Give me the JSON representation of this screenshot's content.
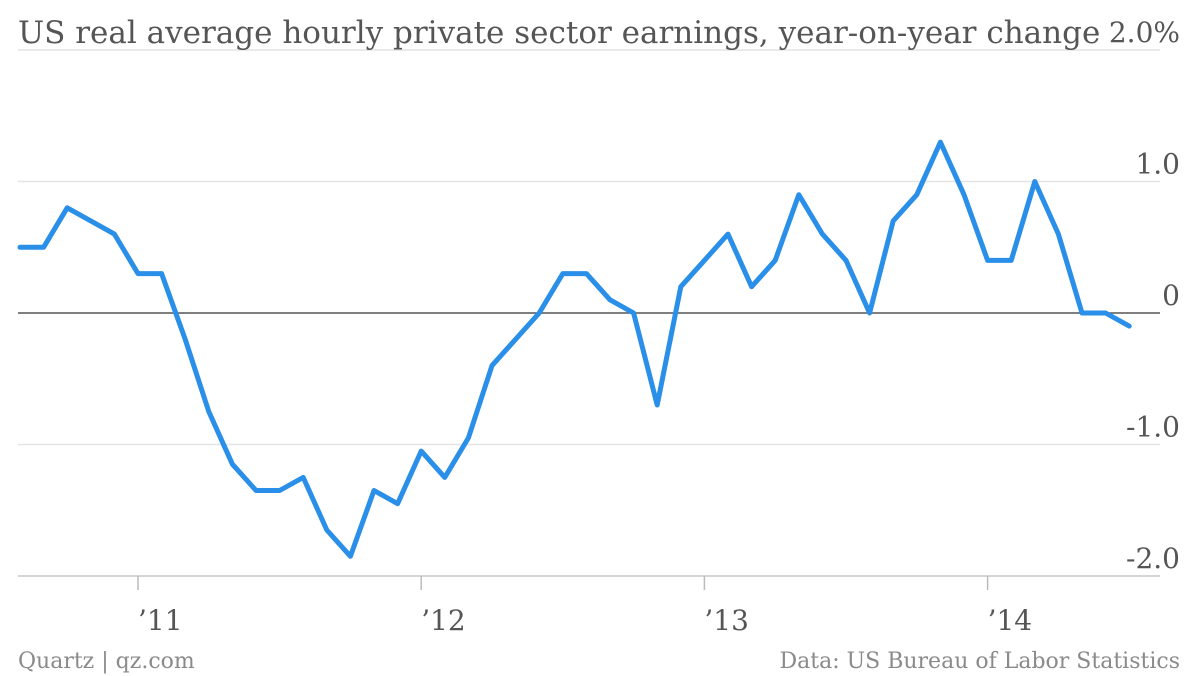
{
  "chart_data": {
    "type": "line",
    "title": "US real average hourly private sector earnings, year-on-year change",
    "xlabel": "",
    "ylabel": "",
    "x": [
      "2010-08",
      "2010-09",
      "2010-10",
      "2010-11",
      "2010-12",
      "2011-01",
      "2011-02",
      "2011-03",
      "2011-04",
      "2011-05",
      "2011-06",
      "2011-07",
      "2011-08",
      "2011-09",
      "2011-10",
      "2011-11",
      "2011-12",
      "2012-01",
      "2012-02",
      "2012-03",
      "2012-04",
      "2012-05",
      "2012-06",
      "2012-07",
      "2012-08",
      "2012-09",
      "2012-10",
      "2012-11",
      "2012-12",
      "2013-01",
      "2013-02",
      "2013-03",
      "2013-04",
      "2013-05",
      "2013-06",
      "2013-07",
      "2013-08",
      "2013-09",
      "2013-10",
      "2013-11",
      "2013-12",
      "2014-01",
      "2014-02",
      "2014-03",
      "2014-04",
      "2014-05",
      "2014-06",
      "2014-07",
      "2014-08"
    ],
    "series": [
      {
        "name": "",
        "color": "#2a8fe8",
        "values": [
          0.5,
          0.5,
          0.8,
          0.7,
          0.6,
          0.3,
          0.3,
          -0.2,
          -0.75,
          -1.15,
          -1.35,
          -1.35,
          -1.25,
          -1.65,
          -1.85,
          -1.35,
          -1.45,
          -1.05,
          -1.25,
          -0.95,
          -0.4,
          -0.2,
          0.0,
          0.3,
          0.3,
          0.1,
          0.0,
          -0.7,
          0.2,
          0.4,
          0.6,
          0.2,
          0.4,
          0.9,
          0.6,
          0.4,
          0.0,
          0.7,
          0.9,
          1.3,
          0.9,
          0.4,
          0.4,
          1.0,
          0.6,
          0.0,
          0.0,
          -0.1,
          null
        ]
      }
    ],
    "ylim": [
      -2,
      2
    ],
    "yticks": [
      {
        "value": 2,
        "label": "2.0%"
      },
      {
        "value": 1,
        "label": "1.0"
      },
      {
        "value": 0,
        "label": "0"
      },
      {
        "value": -1,
        "label": "-1.0"
      },
      {
        "value": -2,
        "label": "-2.0"
      }
    ],
    "xticks": [
      {
        "x": "2011-01",
        "label": "’11"
      },
      {
        "x": "2012-01",
        "label": "’12"
      },
      {
        "x": "2013-01",
        "label": "’13"
      },
      {
        "x": "2014-01",
        "label": "’14"
      }
    ],
    "grid": true,
    "legend": "none"
  },
  "footer": {
    "source_left": "Quartz | qz.com",
    "source_right": "Data: US Bureau of Labor Statistics"
  }
}
